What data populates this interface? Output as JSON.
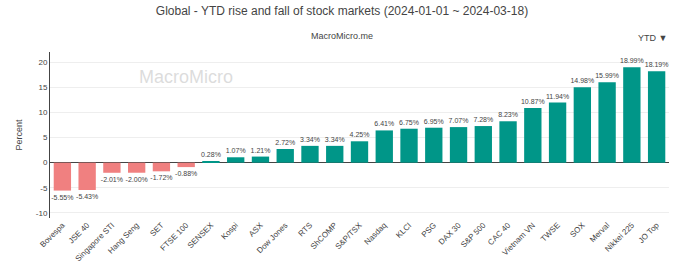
{
  "chart_data": {
    "type": "bar",
    "title": "Global - YTD rise and fall of stock markets (2024-01-01 ~ 2024-03-18)",
    "subtitle": "MacroMicro.me",
    "ylabel": "Percent",
    "categories": [
      "Bovespa",
      "JSE 40",
      "Singapore STI",
      "Hang Seng",
      "SET",
      "FTSE 100",
      "SENSEX",
      "Kospi",
      "ASX",
      "Dow Jones",
      "RTS",
      "ShCOMP",
      "S&P/TSX",
      "Nasdaq",
      "KLCI",
      "PSG",
      "DAX 30",
      "S&P 500",
      "CAC 40",
      "Vietnam VN",
      "TWSE",
      "SOX",
      "Merval",
      "Nikkei 225",
      "JO Top"
    ],
    "values": [
      -5.55,
      -5.43,
      -2.01,
      -2.0,
      -1.72,
      -0.88,
      0.28,
      1.07,
      1.21,
      2.72,
      3.34,
      3.34,
      4.25,
      6.41,
      6.75,
      6.95,
      7.07,
      7.28,
      8.23,
      10.87,
      11.94,
      14.98,
      15.99,
      18.99,
      18.19
    ],
    "value_labels": [
      "-5.55%",
      "-5.43%",
      "-2.01%",
      "-2.00%",
      "-1.72%",
      "-0.88%",
      "0.28%",
      "1.07%",
      "1.21%",
      "2.72%",
      "3.34%",
      "3.34%",
      "4.25%",
      "6.41%",
      "6.75%",
      "6.95%",
      "7.07%",
      "7.28%",
      "8.23%",
      "10.87%",
      "11.94%",
      "14.98%",
      "15.99%",
      "18.99%",
      "18.19%"
    ],
    "data_labels": true,
    "colors": [
      "#f08080",
      "#f08080",
      "#f08080",
      "#f08080",
      "#f08080",
      "#f08080",
      "#009688",
      "#009688",
      "#009688",
      "#009688",
      "#009688",
      "#009688",
      "#009688",
      "#009688",
      "#009688",
      "#009688",
      "#009688",
      "#009688",
      "#009688",
      "#009688",
      "#009688",
      "#009688",
      "#009688",
      "#009688",
      "#009688"
    ],
    "ylim": [
      -11,
      22
    ],
    "yticks": [
      -10,
      -5,
      0,
      5,
      10,
      15,
      20
    ],
    "grid": true,
    "annotations": [
      "MacroMicro",
      "YTD ▼"
    ]
  }
}
